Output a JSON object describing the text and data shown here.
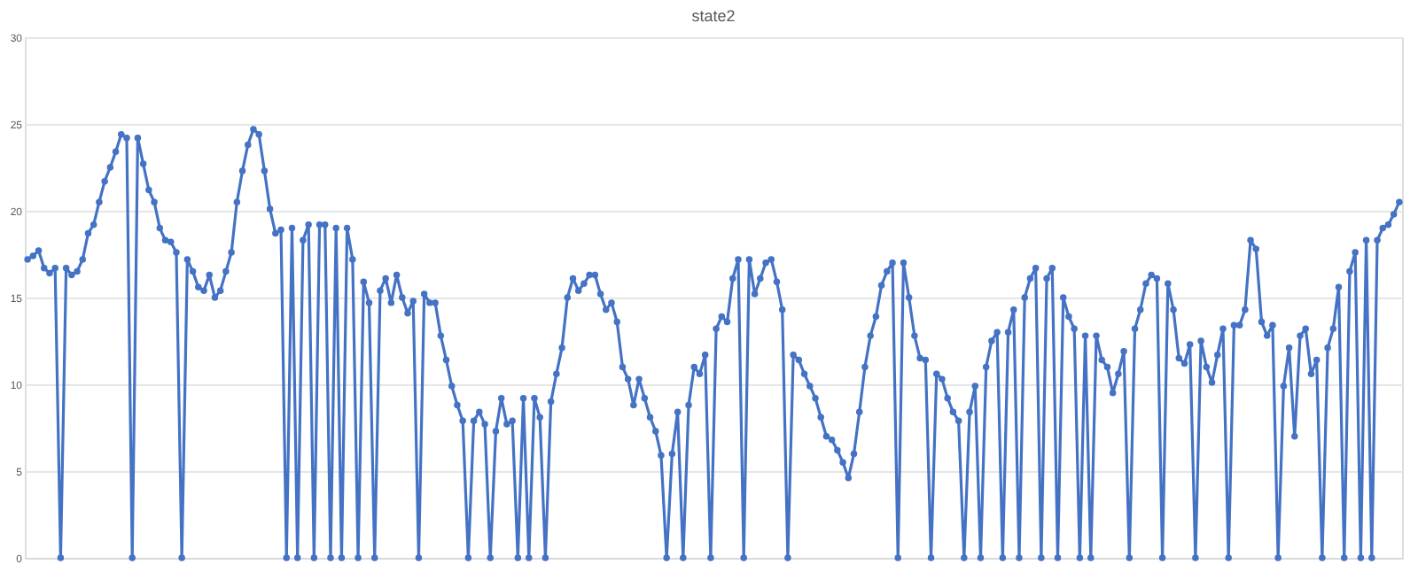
{
  "chart_data": {
    "type": "line",
    "title": "state2",
    "color": "#4472c4",
    "marker": "circle",
    "grid": "y",
    "line_style": "solid",
    "ylim": [
      0,
      30
    ],
    "yticks": [
      0,
      5,
      10,
      15,
      20,
      25,
      30
    ],
    "categories": [
      null,
      null,
      null,
      null,
      null,
      null,
      null,
      null,
      null,
      null,
      null,
      null,
      null,
      null,
      null,
      null,
      null,
      null,
      null,
      null,
      null,
      null,
      null,
      null,
      null,
      null,
      null,
      null,
      null,
      null,
      null,
      null,
      null,
      null,
      null,
      null,
      null,
      null,
      null,
      null,
      null,
      null,
      null,
      null,
      null,
      null,
      null,
      null,
      null,
      null,
      null,
      null,
      null,
      null,
      null,
      null,
      null,
      null,
      null,
      null,
      null,
      null,
      null,
      null,
      null,
      null,
      null,
      null,
      null,
      null,
      null,
      null,
      null,
      null,
      null,
      null,
      null,
      null,
      null,
      null,
      null,
      null,
      null,
      null,
      null,
      null,
      null,
      null,
      null,
      null,
      null,
      null,
      null,
      null,
      null,
      null,
      null,
      null,
      null,
      null,
      null,
      null,
      null,
      null,
      null,
      null,
      null,
      null,
      null,
      null,
      null,
      null,
      null,
      null,
      null,
      null,
      null,
      null,
      null,
      null,
      null,
      null,
      null,
      null,
      null,
      null,
      null,
      null,
      null,
      null,
      null,
      null,
      null,
      null,
      null,
      null,
      null,
      null,
      null,
      null,
      null,
      null,
      null,
      null,
      null,
      null,
      null,
      null,
      null,
      null,
      null,
      null,
      null,
      null,
      null,
      null,
      null,
      null,
      null,
      null,
      null,
      null,
      null,
      null,
      null,
      null,
      null,
      null,
      null,
      null,
      null,
      null,
      null,
      null,
      null,
      null,
      null,
      null,
      null,
      null,
      null,
      null,
      null,
      null,
      null,
      null,
      null,
      null,
      null,
      null,
      null,
      null,
      null,
      null,
      null,
      null,
      null,
      null,
      null,
      null,
      null,
      null,
      null,
      null,
      null,
      null,
      null,
      null,
      null,
      null,
      null,
      null,
      null,
      null,
      null,
      null,
      null,
      null,
      null,
      null,
      null,
      null,
      null,
      null,
      null,
      null,
      null,
      null,
      null,
      null,
      null,
      null,
      null,
      null,
      null,
      null,
      null,
      null,
      null,
      null,
      null,
      null,
      null,
      null,
      null,
      null,
      null,
      null,
      null,
      null
    ],
    "values": [
      17.2,
      17.4,
      17.7,
      16.7,
      16.4,
      16.7,
      0,
      16.7,
      16.3,
      16.5,
      17.2,
      18.7,
      19.2,
      20.5,
      21.7,
      22.5,
      23.4,
      24.4,
      24.2,
      0,
      24.2,
      22.7,
      21.2,
      20.5,
      19.0,
      18.3,
      18.2,
      17.6,
      0,
      17.2,
      16.5,
      15.6,
      15.4,
      16.3,
      15.0,
      15.4,
      16.5,
      17.6,
      20.5,
      22.3,
      23.8,
      24.7,
      24.4,
      22.3,
      20.1,
      18.7,
      18.9,
      0,
      19.0,
      0,
      18.3,
      19.2,
      0,
      19.2,
      19.2,
      0,
      19.0,
      0,
      19.0,
      17.2,
      0,
      15.9,
      14.7,
      0,
      15.4,
      16.1,
      14.7,
      16.3,
      15.0,
      14.1,
      14.8,
      0,
      15.2,
      14.7,
      14.7,
      12.8,
      11.4,
      9.9,
      8.8,
      7.9,
      0,
      7.9,
      8.4,
      7.7,
      0,
      7.3,
      9.2,
      7.7,
      7.9,
      0,
      9.2,
      0,
      9.2,
      8.1,
      0,
      9.0,
      10.6,
      12.1,
      15.0,
      16.1,
      15.4,
      15.8,
      16.3,
      16.3,
      15.2,
      14.3,
      14.7,
      13.6,
      11.0,
      10.3,
      8.8,
      10.3,
      9.2,
      8.1,
      7.3,
      5.9,
      0,
      6.0,
      8.4,
      0,
      8.8,
      11.0,
      10.6,
      11.7,
      0,
      13.2,
      13.9,
      13.6,
      16.1,
      17.2,
      0,
      17.2,
      15.2,
      16.1,
      17.0,
      17.2,
      15.9,
      14.3,
      0,
      11.7,
      11.4,
      10.6,
      9.9,
      9.2,
      8.1,
      7.0,
      6.8,
      6.2,
      5.5,
      4.6,
      6.0,
      8.4,
      11.0,
      12.8,
      13.9,
      15.7,
      16.5,
      17.0,
      0,
      17.0,
      15.0,
      12.8,
      11.5,
      11.4,
      0,
      10.6,
      10.3,
      9.2,
      8.4,
      7.9,
      0,
      8.4,
      9.9,
      0,
      11.0,
      12.5,
      13.0,
      0,
      13.0,
      14.3,
      0,
      15.0,
      16.1,
      16.7,
      0,
      16.1,
      16.7,
      0,
      15.0,
      13.9,
      13.2,
      0,
      12.8,
      0,
      12.8,
      11.4,
      11.0,
      9.5,
      10.6,
      11.9,
      0,
      13.2,
      14.3,
      15.8,
      16.3,
      16.1,
      0,
      15.8,
      14.3,
      11.5,
      11.2,
      12.3,
      0,
      12.5,
      11.0,
      10.1,
      11.7,
      13.2,
      0,
      13.4,
      13.4,
      14.3,
      18.3,
      17.8,
      13.6,
      12.8,
      13.4,
      0,
      9.9,
      12.1,
      7.0,
      12.8,
      13.2,
      10.6,
      11.4,
      0,
      12.1,
      13.2,
      15.6,
      0,
      16.5,
      17.6,
      0,
      18.3,
      0,
      18.3,
      19.0,
      19.2,
      19.8,
      20.5
    ]
  }
}
